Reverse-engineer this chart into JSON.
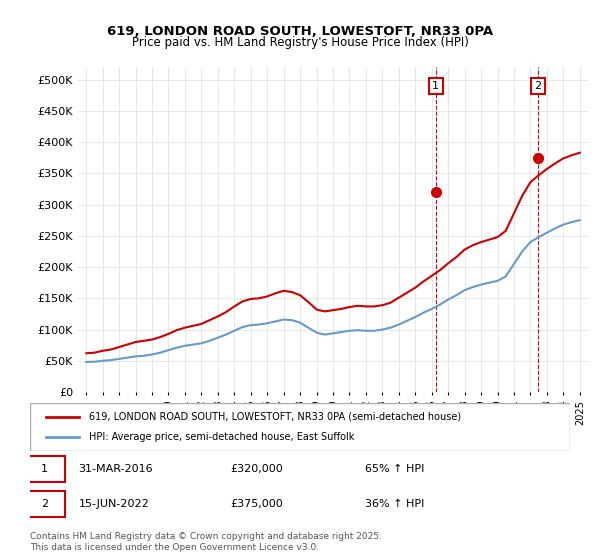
{
  "title_line1": "619, LONDON ROAD SOUTH, LOWESTOFT, NR33 0PA",
  "title_line2": "Price paid vs. HM Land Registry's House Price Index (HPI)",
  "ylabel": "",
  "xlim_start": 1995,
  "xlim_end": 2025.5,
  "ylim": [
    0,
    520000
  ],
  "yticks": [
    0,
    50000,
    100000,
    150000,
    200000,
    250000,
    300000,
    350000,
    400000,
    450000,
    500000
  ],
  "ytick_labels": [
    "£0",
    "£50K",
    "£100K",
    "£150K",
    "£200K",
    "£250K",
    "£300K",
    "£350K",
    "£400K",
    "£450K",
    "£500K"
  ],
  "xtick_years": [
    1995,
    1996,
    1997,
    1998,
    1999,
    2000,
    2001,
    2002,
    2003,
    2004,
    2005,
    2006,
    2007,
    2008,
    2009,
    2010,
    2011,
    2012,
    2013,
    2014,
    2015,
    2016,
    2017,
    2018,
    2019,
    2020,
    2021,
    2022,
    2023,
    2024,
    2025
  ],
  "red_line_color": "#cc0000",
  "blue_line_color": "#6699cc",
  "marker_color_red": "#cc0000",
  "marker_color_blue": "#6699cc",
  "annotation_box_color": "#cc0000",
  "vline_color": "#cc0000",
  "legend_label_red": "619, LONDON ROAD SOUTH, LOWESTOFT, NR33 0PA (semi-detached house)",
  "legend_label_blue": "HPI: Average price, semi-detached house, East Suffolk",
  "transaction1_date": "31-MAR-2016",
  "transaction1_price": "£320,000",
  "transaction1_hpi": "65% ↑ HPI",
  "transaction1_year": 2016.25,
  "transaction1_value": 320000,
  "transaction2_date": "15-JUN-2022",
  "transaction2_price": "£375,000",
  "transaction2_hpi": "36% ↑ HPI",
  "transaction2_year": 2022.46,
  "transaction2_value": 375000,
  "footnote": "Contains HM Land Registry data © Crown copyright and database right 2025.\nThis data is licensed under the Open Government Licence v3.0.",
  "hpi_x": [
    1995,
    1995.5,
    1996,
    1996.5,
    1997,
    1997.5,
    1998,
    1998.5,
    1999,
    1999.5,
    2000,
    2000.5,
    2001,
    2001.5,
    2002,
    2002.5,
    2003,
    2003.5,
    2004,
    2004.5,
    2005,
    2005.5,
    2006,
    2006.5,
    2007,
    2007.5,
    2008,
    2008.5,
    2009,
    2009.5,
    2010,
    2010.5,
    2011,
    2011.5,
    2012,
    2012.5,
    2013,
    2013.5,
    2014,
    2014.5,
    2015,
    2015.5,
    2016,
    2016.5,
    2017,
    2017.5,
    2018,
    2018.5,
    2019,
    2019.5,
    2020,
    2020.5,
    2021,
    2021.5,
    2022,
    2022.5,
    2023,
    2023.5,
    2024,
    2024.5,
    2025
  ],
  "hpi_y": [
    48000,
    48500,
    50000,
    51000,
    53000,
    55000,
    57000,
    58000,
    60000,
    63000,
    67000,
    71000,
    74000,
    76000,
    78000,
    82000,
    87000,
    92000,
    98000,
    104000,
    107000,
    108000,
    110000,
    113000,
    116000,
    115000,
    111000,
    103000,
    95000,
    92000,
    94000,
    96000,
    98000,
    99000,
    98000,
    98000,
    100000,
    103000,
    108000,
    114000,
    120000,
    127000,
    133000,
    140000,
    148000,
    155000,
    163000,
    168000,
    172000,
    175000,
    178000,
    185000,
    205000,
    225000,
    240000,
    248000,
    255000,
    262000,
    268000,
    272000,
    275000
  ],
  "price_x": [
    1995,
    1995.5,
    1996,
    1996.5,
    1997,
    1997.5,
    1998,
    1998.5,
    1999,
    1999.5,
    2000,
    2000.5,
    2001,
    2001.5,
    2002,
    2002.5,
    2003,
    2003.5,
    2004,
    2004.5,
    2005,
    2005.5,
    2006,
    2006.5,
    2007,
    2007.5,
    2008,
    2008.5,
    2009,
    2009.5,
    2010,
    2010.5,
    2011,
    2011.5,
    2012,
    2012.5,
    2013,
    2013.5,
    2014,
    2014.5,
    2015,
    2015.5,
    2016,
    2016.5,
    2017,
    2017.5,
    2018,
    2018.5,
    2019,
    2019.5,
    2020,
    2020.5,
    2021,
    2021.5,
    2022,
    2022.5,
    2023,
    2023.5,
    2024,
    2024.5,
    2025
  ],
  "price_y": [
    62000,
    63000,
    66000,
    68000,
    72000,
    76000,
    80000,
    82000,
    84000,
    88000,
    93000,
    99000,
    103000,
    106000,
    109000,
    115000,
    121000,
    128000,
    137000,
    145000,
    149000,
    150000,
    153000,
    158000,
    162000,
    160000,
    155000,
    144000,
    132000,
    129000,
    131000,
    133000,
    136000,
    138000,
    137000,
    137000,
    139000,
    143000,
    151000,
    159000,
    167000,
    177000,
    186000,
    195000,
    206000,
    216000,
    228000,
    235000,
    240000,
    244000,
    248000,
    258000,
    286000,
    314000,
    336000,
    347000,
    357000,
    366000,
    374000,
    379000,
    383000
  ]
}
